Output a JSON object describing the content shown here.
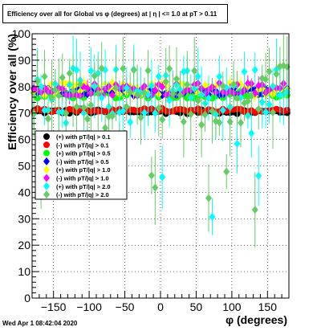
{
  "chart_data": {
    "type": "scatter",
    "title": "Efficiency over all for Global vs φ (degrees) at | η | <= 1.0 at pT > 0.11",
    "xlabel": "φ (degrees)",
    "ylabel": "Efficiency over all (%)",
    "xlim": [
      -180,
      180
    ],
    "ylim": [
      0,
      100
    ],
    "x_ticks": [
      -150,
      -100,
      -50,
      0,
      50,
      100,
      150
    ],
    "y_ticks": [
      0,
      10,
      20,
      30,
      40,
      50,
      60,
      70,
      80,
      90,
      100
    ],
    "grid": true,
    "legend_position": "left-middle",
    "series": [
      {
        "name": "(+) with pT/|q| > 0.1",
        "color": "#000000",
        "marker": "circle",
        "level": 70.5,
        "spread": 0.8,
        "err": 0.5
      },
      {
        "name": "(-) with pT/|q| > 0.1",
        "color": "#ff0000",
        "marker": "circle",
        "level": 71,
        "spread": 0.8,
        "err": 0.5
      },
      {
        "name": "(+) with pT/|q| > 0.5",
        "color": "#00ff00",
        "marker": "circle",
        "level": 77,
        "spread": 1.5,
        "err": 1.0
      },
      {
        "name": "(-) with pT/|q| > 0.5",
        "color": "#0000ff",
        "marker": "diamond",
        "level": 78,
        "spread": 1.5,
        "err": 1.0
      },
      {
        "name": "(+) with pT/|q| > 1.0",
        "color": "#ffff00",
        "marker": "diamond",
        "level": 79,
        "spread": 2.5,
        "err": 2.0
      },
      {
        "name": "(-) with pT/|q| > 1.0",
        "color": "#ff00ff",
        "marker": "diamond",
        "level": 79,
        "spread": 2.5,
        "err": 2.0
      },
      {
        "name": "(+) with pT/|q| > 2.0",
        "color": "#00ffff",
        "marker": "diamond",
        "level": 78,
        "spread": 9,
        "err": 7.0
      },
      {
        "name": "(-) with pT/|q| > 2.0",
        "color": "#66cc66",
        "marker": "diamond",
        "level": 77,
        "spread": 11,
        "err": 8.0
      }
    ]
  },
  "footer_timestamp": "Wed Apr  1 08:42:04 2020"
}
